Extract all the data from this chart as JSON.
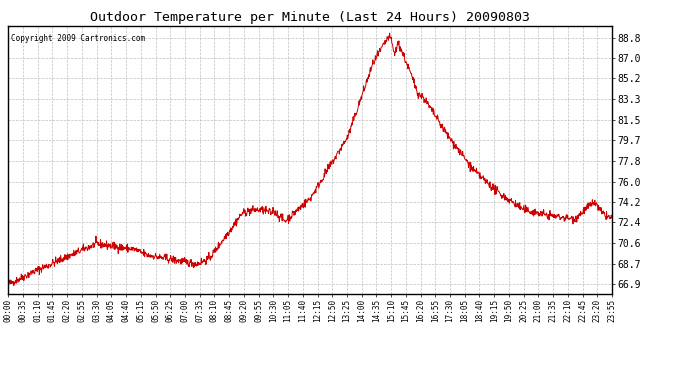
{
  "title": "Outdoor Temperature per Minute (Last 24 Hours) 20090803",
  "copyright": "Copyright 2009 Cartronics.com",
  "line_color": "#cc0000",
  "background_color": "#ffffff",
  "plot_background": "#ffffff",
  "grid_color": "#b0b0b0",
  "yticks": [
    66.9,
    68.7,
    70.6,
    72.4,
    74.2,
    76.0,
    77.8,
    79.7,
    81.5,
    83.3,
    85.2,
    87.0,
    88.8
  ],
  "ymin": 66.0,
  "ymax": 89.8,
  "xtick_labels": [
    "00:00",
    "00:35",
    "01:10",
    "01:45",
    "02:20",
    "02:55",
    "03:30",
    "04:05",
    "04:40",
    "05:15",
    "05:50",
    "06:25",
    "07:00",
    "07:35",
    "08:10",
    "08:45",
    "09:20",
    "09:55",
    "10:30",
    "11:05",
    "11:40",
    "12:15",
    "12:50",
    "13:25",
    "14:00",
    "14:35",
    "15:10",
    "15:45",
    "16:20",
    "16:55",
    "17:30",
    "18:05",
    "18:40",
    "19:15",
    "19:50",
    "20:25",
    "21:00",
    "21:35",
    "22:10",
    "22:45",
    "23:20",
    "23:55"
  ]
}
